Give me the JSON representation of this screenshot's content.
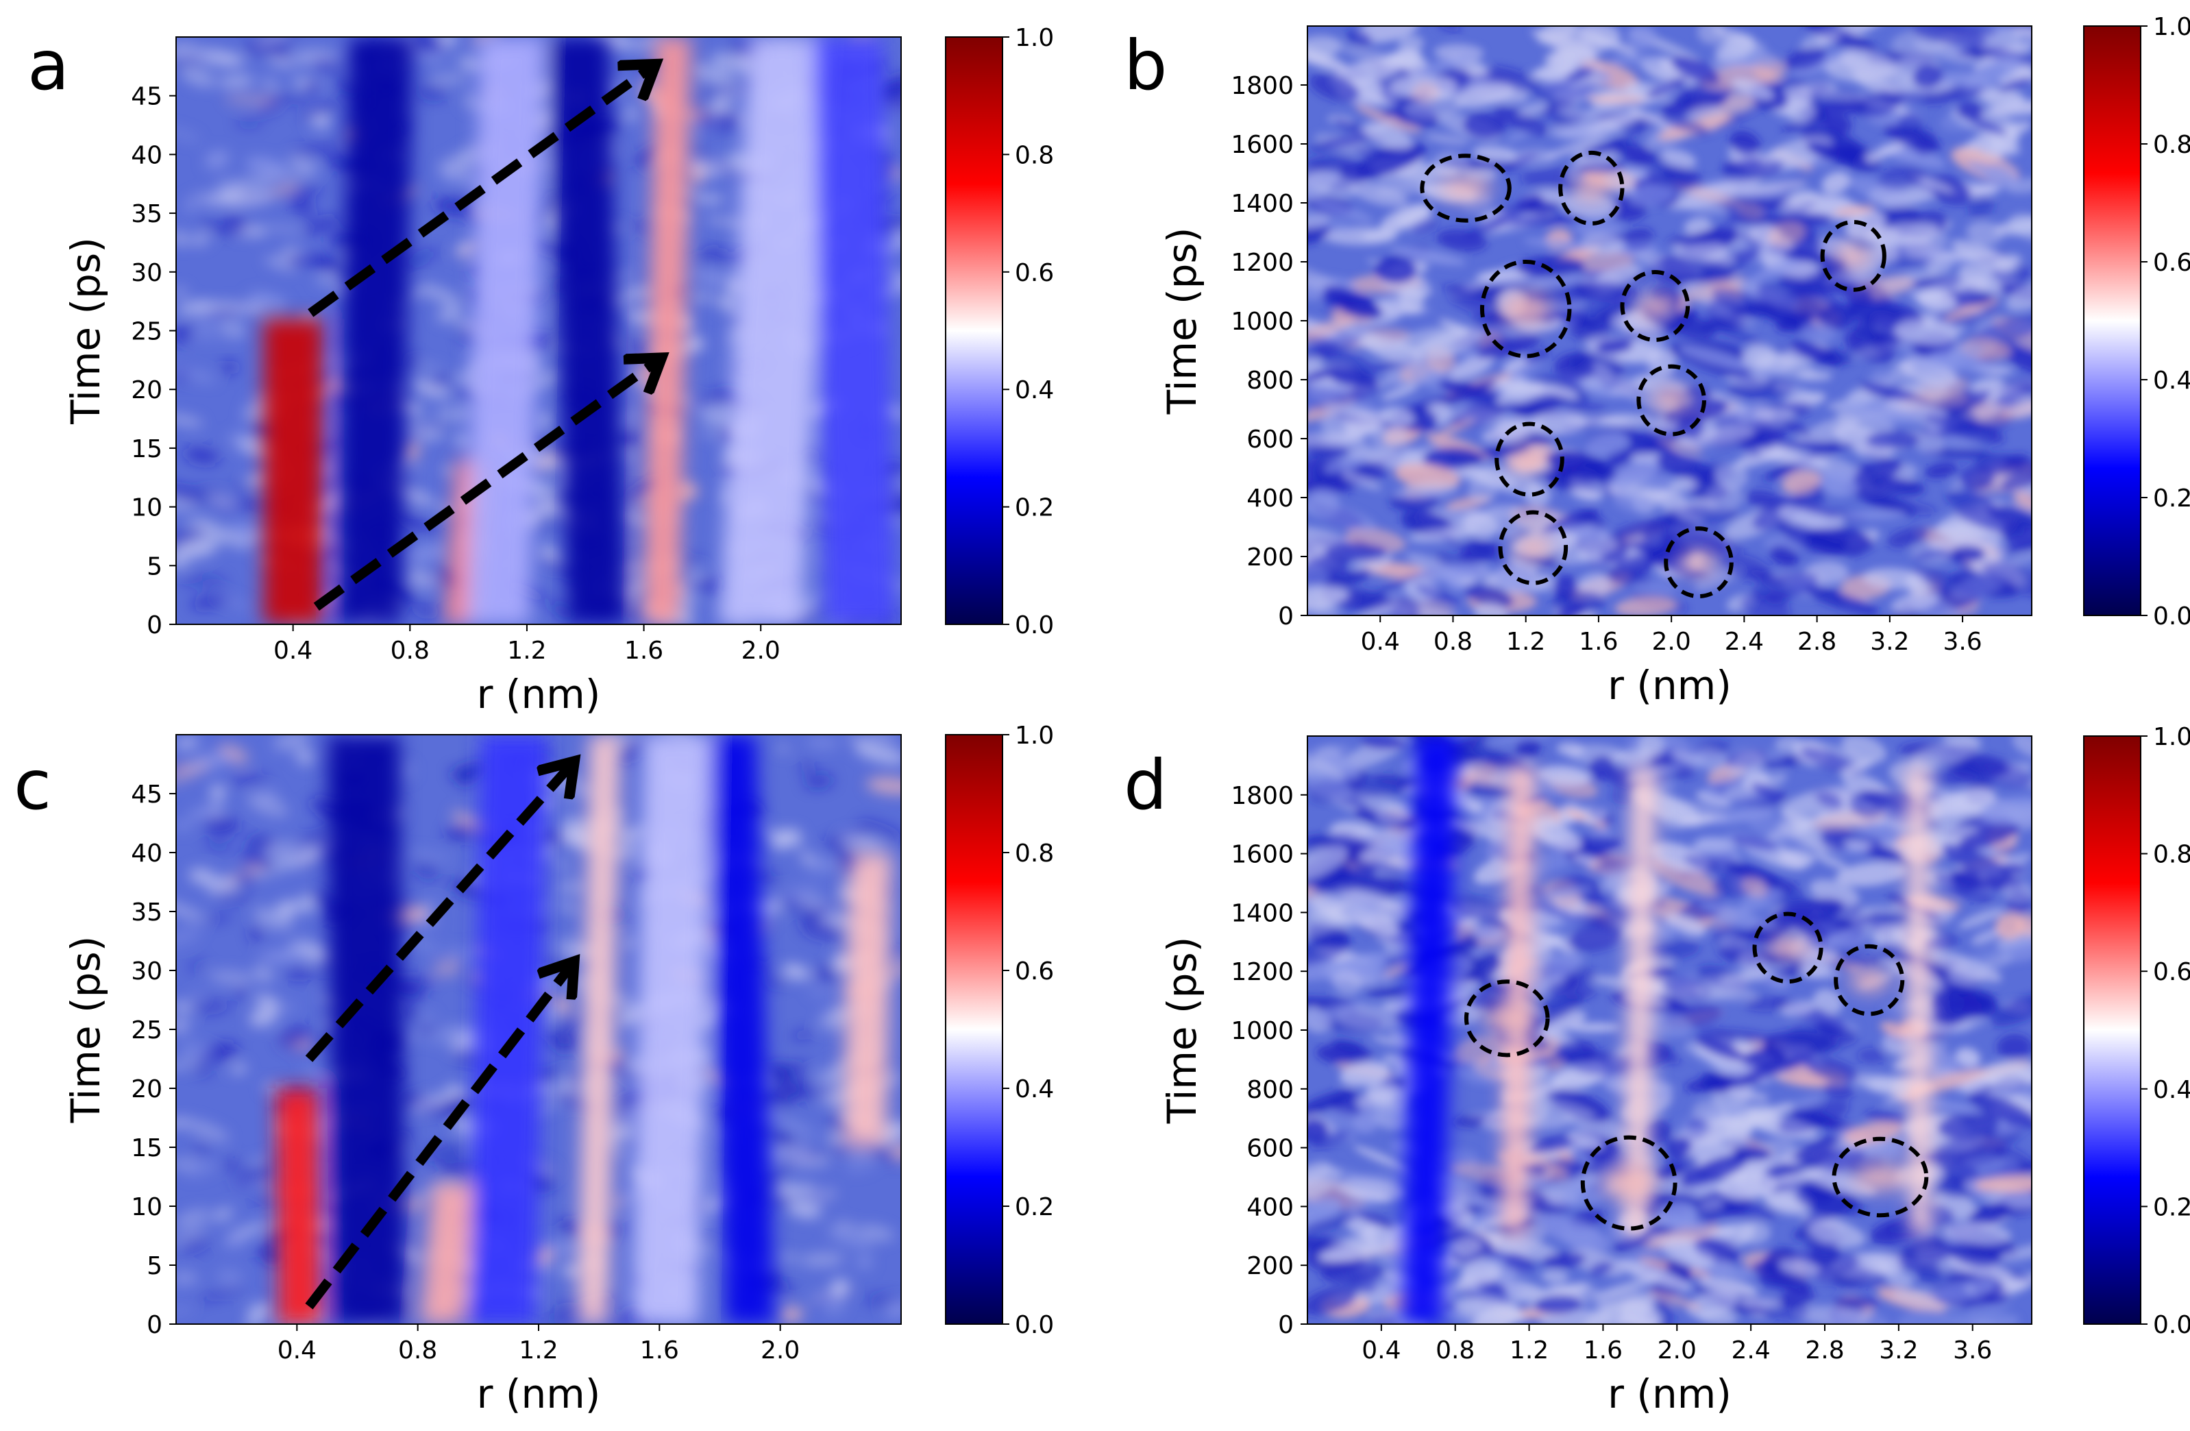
{
  "colors": {
    "cmap": [
      "#00004c",
      "#0000ff",
      "#ffffff",
      "#ff0000",
      "#800000"
    ],
    "bg_blue": "#5a6ed8",
    "light": "#c8cbf2",
    "dark": "#1a1fbf",
    "red": "#f03a3a",
    "pink": "#f2b8b8",
    "axis": "#000000"
  },
  "chart_data": [
    {
      "id": "a",
      "type": "heatmap",
      "panel_label": "a",
      "xlabel": "r (nm)",
      "ylabel": "Time  (ps)",
      "xlim": [
        0.0,
        2.48
      ],
      "ylim": [
        0,
        50
      ],
      "xticks": [
        0.4,
        0.8,
        1.2,
        1.6,
        2.0
      ],
      "xtick_labels": [
        "0.4",
        "0.8",
        "1.2",
        "1.6",
        "2.0"
      ],
      "yticks": [
        0,
        5,
        10,
        15,
        20,
        25,
        30,
        35,
        40,
        45
      ],
      "ytick_labels": [
        "0",
        "5",
        "10",
        "15",
        "20",
        "25",
        "30",
        "35",
        "40",
        "45"
      ],
      "colorbar": {
        "min": 0.0,
        "max": 1.0,
        "ticks": [
          0.0,
          0.2,
          0.4,
          0.6,
          0.8,
          1.0
        ],
        "tick_labels": [
          "0.0",
          "0.2",
          "0.4",
          "0.6",
          "0.8",
          "1.0"
        ]
      },
      "bands": [
        {
          "x0": 0.4,
          "y0": 0,
          "x1": 0.4,
          "y1": 26,
          "width": 0.2,
          "value": 0.85
        },
        {
          "x0": 0.66,
          "y0": 0,
          "x1": 0.7,
          "y1": 50,
          "width": 0.22,
          "value": 0.12
        },
        {
          "x0": 0.98,
          "y0": 0,
          "x1": 1.02,
          "y1": 14,
          "width": 0.12,
          "value": 0.62
        },
        {
          "x0": 1.44,
          "y0": 0,
          "x1": 1.38,
          "y1": 50,
          "width": 0.2,
          "value": 0.12
        },
        {
          "x0": 1.66,
          "y0": 0,
          "x1": 1.7,
          "y1": 50,
          "width": 0.12,
          "value": 0.6
        },
        {
          "x0": 2.0,
          "y0": 0,
          "x1": 2.1,
          "y1": 50,
          "width": 0.28,
          "value": 0.44
        },
        {
          "x0": 2.34,
          "y0": 0,
          "x1": 2.3,
          "y1": 50,
          "width": 0.24,
          "value": 0.32
        },
        {
          "x0": 1.1,
          "y0": 0,
          "x1": 1.15,
          "y1": 50,
          "width": 0.22,
          "value": 0.42
        }
      ],
      "arrows": [
        {
          "from": [
            0.48,
            1.5
          ],
          "to": [
            1.65,
            22.5
          ]
        },
        {
          "from": [
            0.46,
            26.5
          ],
          "to": [
            1.63,
            47.5
          ]
        }
      ],
      "circles": []
    },
    {
      "id": "b",
      "type": "heatmap",
      "panel_label": "b",
      "xlabel": "r (nm)",
      "ylabel": "Time  (ps)",
      "xlim": [
        0.0,
        3.98
      ],
      "ylim": [
        0,
        2000
      ],
      "xticks": [
        0.4,
        0.8,
        1.2,
        1.6,
        2.0,
        2.4,
        2.8,
        3.2,
        3.6
      ],
      "xtick_labels": [
        "0.4",
        "0.8",
        "1.2",
        "1.6",
        "2.0",
        "2.4",
        "2.8",
        "3.2",
        "3.6"
      ],
      "yticks": [
        0,
        200,
        400,
        600,
        800,
        1000,
        1200,
        1400,
        1600,
        1800
      ],
      "ytick_labels": [
        "0",
        "200",
        "400",
        "600",
        "800",
        "1000",
        "1200",
        "1400",
        "1600",
        "1800"
      ],
      "colorbar": {
        "min": 0.0,
        "max": 1.0,
        "ticks": [
          0.0,
          0.2,
          0.4,
          0.6,
          0.8,
          1.0
        ],
        "tick_labels": [
          "0.0",
          "0.2",
          "0.4",
          "0.6",
          "0.8",
          "1.0"
        ]
      },
      "bands": [],
      "arrows": [],
      "circles": [
        {
          "x": 0.87,
          "y": 1450,
          "rx": 0.24,
          "ry": 110
        },
        {
          "x": 1.56,
          "y": 1450,
          "rx": 0.17,
          "ry": 120
        },
        {
          "x": 3.0,
          "y": 1220,
          "rx": 0.17,
          "ry": 115
        },
        {
          "x": 1.2,
          "y": 1040,
          "rx": 0.24,
          "ry": 160
        },
        {
          "x": 1.91,
          "y": 1050,
          "rx": 0.18,
          "ry": 115
        },
        {
          "x": 2.0,
          "y": 730,
          "rx": 0.18,
          "ry": 115
        },
        {
          "x": 1.22,
          "y": 530,
          "rx": 0.18,
          "ry": 120
        },
        {
          "x": 1.24,
          "y": 230,
          "rx": 0.18,
          "ry": 120
        },
        {
          "x": 2.15,
          "y": 180,
          "rx": 0.18,
          "ry": 115
        }
      ]
    },
    {
      "id": "c",
      "type": "heatmap",
      "panel_label": "c",
      "xlabel": "r (nm)",
      "ylabel": "Time  (ps)",
      "xlim": [
        0.0,
        2.4
      ],
      "ylim": [
        0,
        50
      ],
      "xticks": [
        0.4,
        0.8,
        1.2,
        1.6,
        2.0
      ],
      "xtick_labels": [
        "0.4",
        "0.8",
        "1.2",
        "1.6",
        "2.0"
      ],
      "yticks": [
        0,
        5,
        10,
        15,
        20,
        25,
        30,
        35,
        40,
        45
      ],
      "ytick_labels": [
        "0",
        "5",
        "10",
        "15",
        "20",
        "25",
        "30",
        "35",
        "40",
        "45"
      ],
      "colorbar": {
        "min": 0.0,
        "max": 1.0,
        "ticks": [
          0.0,
          0.2,
          0.4,
          0.6,
          0.8,
          1.0
        ],
        "tick_labels": [
          "0.0",
          "0.2",
          "0.4",
          "0.6",
          "0.8",
          "1.0"
        ]
      },
      "bands": [
        {
          "x0": 0.41,
          "y0": 0,
          "x1": 0.4,
          "y1": 20,
          "width": 0.14,
          "value": 0.72
        },
        {
          "x0": 0.64,
          "y0": 0,
          "x1": 0.62,
          "y1": 50,
          "width": 0.24,
          "value": 0.12
        },
        {
          "x0": 0.88,
          "y0": 0,
          "x1": 0.92,
          "y1": 12,
          "width": 0.14,
          "value": 0.58
        },
        {
          "x0": 1.08,
          "y0": 0,
          "x1": 1.12,
          "y1": 50,
          "width": 0.22,
          "value": 0.3
        },
        {
          "x0": 1.38,
          "y0": 0,
          "x1": 1.42,
          "y1": 50,
          "width": 0.1,
          "value": 0.55
        },
        {
          "x0": 1.9,
          "y0": 0,
          "x1": 1.84,
          "y1": 50,
          "width": 0.16,
          "value": 0.22
        },
        {
          "x0": 2.28,
          "y0": 15,
          "x1": 2.3,
          "y1": 40,
          "width": 0.14,
          "value": 0.56
        },
        {
          "x0": 1.62,
          "y0": 0,
          "x1": 1.66,
          "y1": 50,
          "width": 0.22,
          "value": 0.44
        }
      ],
      "arrows": [
        {
          "from": [
            0.44,
            1.5
          ],
          "to": [
            1.31,
            30.5
          ]
        },
        {
          "from": [
            0.44,
            22.5
          ],
          "to": [
            1.31,
            47.5
          ]
        }
      ],
      "circles": []
    },
    {
      "id": "d",
      "type": "heatmap",
      "panel_label": "d",
      "xlabel": "r (nm)",
      "ylabel": "Time  (ps)",
      "xlim": [
        0.0,
        3.92
      ],
      "ylim": [
        0,
        2000
      ],
      "xticks": [
        0.4,
        0.8,
        1.2,
        1.6,
        2.0,
        2.4,
        2.8,
        3.2,
        3.6
      ],
      "xtick_labels": [
        "0.4",
        "0.8",
        "1.2",
        "1.6",
        "2.0",
        "2.4",
        "2.8",
        "3.2",
        "3.6"
      ],
      "yticks": [
        0,
        200,
        400,
        600,
        800,
        1000,
        1200,
        1400,
        1600,
        1800
      ],
      "ytick_labels": [
        "0",
        "200",
        "400",
        "600",
        "800",
        "1000",
        "1200",
        "1400",
        "1600",
        "1800"
      ],
      "colorbar": {
        "min": 0.0,
        "max": 1.0,
        "ticks": [
          0.0,
          0.2,
          0.4,
          0.6,
          0.8,
          1.0
        ],
        "tick_labels": [
          "0.0",
          "0.2",
          "0.4",
          "0.6",
          "0.8",
          "1.0"
        ]
      },
      "bands": [
        {
          "x0": 0.62,
          "y0": 0,
          "x1": 0.7,
          "y1": 2000,
          "width": 0.22,
          "value": 0.24
        },
        {
          "x0": 1.12,
          "y0": 300,
          "x1": 1.16,
          "y1": 1900,
          "width": 0.14,
          "value": 0.56
        },
        {
          "x0": 1.78,
          "y0": 300,
          "x1": 1.82,
          "y1": 1900,
          "width": 0.14,
          "value": 0.54
        },
        {
          "x0": 3.32,
          "y0": 300,
          "x1": 3.3,
          "y1": 1900,
          "width": 0.12,
          "value": 0.54
        }
      ],
      "arrows": [],
      "circles": [
        {
          "x": 1.08,
          "y": 1040,
          "rx": 0.22,
          "ry": 125
        },
        {
          "x": 2.6,
          "y": 1280,
          "rx": 0.18,
          "ry": 115
        },
        {
          "x": 3.04,
          "y": 1170,
          "rx": 0.18,
          "ry": 115
        },
        {
          "x": 1.74,
          "y": 480,
          "rx": 0.25,
          "ry": 155
        },
        {
          "x": 3.1,
          "y": 500,
          "rx": 0.25,
          "ry": 130
        }
      ]
    }
  ]
}
